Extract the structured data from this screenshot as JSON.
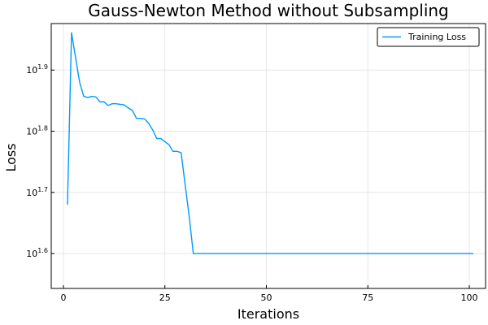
{
  "chart_data": {
    "type": "line",
    "title": "Gauss-Newton Method without Subsampling",
    "xlabel": "Iterations",
    "ylabel": "Loss",
    "y_scale": "log10",
    "x_ticks": [
      0,
      25,
      50,
      75,
      100
    ],
    "x_tick_labels": [
      "0",
      "25",
      "50",
      "75",
      "100"
    ],
    "y_tick_exponents": [
      1.6,
      1.7,
      1.8,
      1.9
    ],
    "y_tick_labels": [
      {
        "base": "10",
        "exp": "1.6"
      },
      {
        "base": "10",
        "exp": "1.7"
      },
      {
        "base": "10",
        "exp": "1.8"
      },
      {
        "base": "10",
        "exp": "1.9"
      }
    ],
    "xlim": [
      -3,
      104
    ],
    "ylim_log10": [
      1.543,
      1.976
    ],
    "grid": true,
    "legend": {
      "position": "top-right"
    },
    "series": [
      {
        "name": "Training Loss",
        "color": "#009AF9",
        "x": [
          1,
          2,
          3,
          4,
          5,
          6,
          7,
          8,
          9,
          10,
          11,
          12,
          13,
          14,
          15,
          16,
          17,
          18,
          19,
          20,
          21,
          22,
          23,
          24,
          25,
          26,
          27,
          28,
          29,
          30,
          31,
          32,
          33,
          34,
          35,
          36,
          37,
          38,
          39,
          40,
          41,
          42,
          43,
          44,
          45,
          46,
          47,
          48,
          49,
          50,
          51,
          52,
          53,
          54,
          55,
          56,
          57,
          58,
          59,
          60,
          61,
          62,
          63,
          64,
          65,
          66,
          67,
          68,
          69,
          70,
          71,
          72,
          73,
          74,
          75,
          76,
          77,
          78,
          79,
          80,
          81,
          82,
          83,
          84,
          85,
          86,
          87,
          88,
          89,
          90,
          91,
          92,
          93,
          94,
          95,
          96,
          97,
          98,
          99,
          100,
          101
        ],
        "log10_y": [
          1.68,
          1.961,
          1.92,
          1.88,
          1.857,
          1.855,
          1.857,
          1.856,
          1.848,
          1.848,
          1.842,
          1.845,
          1.845,
          1.844,
          1.843,
          1.838,
          1.834,
          1.821,
          1.821,
          1.82,
          1.813,
          1.802,
          1.788,
          1.788,
          1.783,
          1.778,
          1.767,
          1.767,
          1.765,
          1.712,
          1.66,
          1.6,
          1.6,
          1.6,
          1.6,
          1.6,
          1.6,
          1.6,
          1.6,
          1.6,
          1.6,
          1.6,
          1.6,
          1.6,
          1.6,
          1.6,
          1.6,
          1.6,
          1.6,
          1.6,
          1.6,
          1.6,
          1.6,
          1.6,
          1.6,
          1.6,
          1.6,
          1.6,
          1.6,
          1.6,
          1.6,
          1.6,
          1.6,
          1.6,
          1.6,
          1.6,
          1.6,
          1.6,
          1.6,
          1.6,
          1.6,
          1.6,
          1.6,
          1.6,
          1.6,
          1.6,
          1.6,
          1.6,
          1.6,
          1.6,
          1.6,
          1.6,
          1.6,
          1.6,
          1.6,
          1.6,
          1.6,
          1.6,
          1.6,
          1.6,
          1.6,
          1.6,
          1.6,
          1.6,
          1.6,
          1.6,
          1.6,
          1.6,
          1.6,
          1.6,
          1.6
        ]
      }
    ]
  }
}
